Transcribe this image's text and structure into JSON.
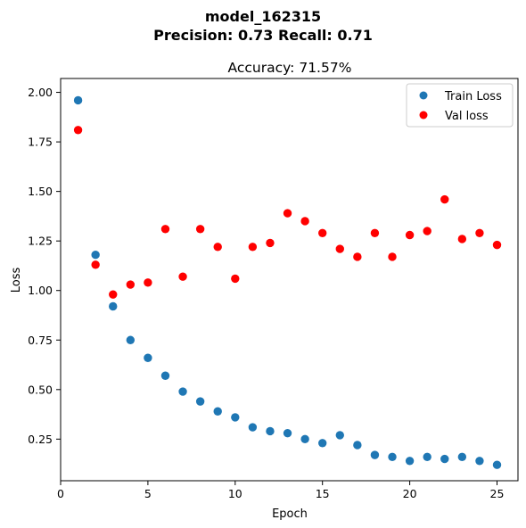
{
  "chart_data": {
    "type": "scatter",
    "suptitle_line1": "model_162315",
    "suptitle_line2": "Precision: 0.73 Recall: 0.71",
    "title": "Accuracy: 71.57%",
    "xlabel": "Epoch",
    "ylabel": "Loss",
    "xlim": [
      0.0,
      26.2
    ],
    "ylim": [
      0.04,
      2.07
    ],
    "xticks": [
      0,
      5,
      10,
      15,
      20,
      25
    ],
    "xtick_labels": [
      "0",
      "5",
      "10",
      "15",
      "20",
      "25"
    ],
    "yticks": [
      0.25,
      0.5,
      0.75,
      1.0,
      1.25,
      1.5,
      1.75,
      2.0
    ],
    "ytick_labels": [
      "0.25",
      "0.50",
      "0.75",
      "1.00",
      "1.25",
      "1.50",
      "1.75",
      "2.00"
    ],
    "legend_position": "top-right",
    "grid": false,
    "x": [
      1,
      2,
      3,
      4,
      5,
      6,
      7,
      8,
      9,
      10,
      11,
      12,
      13,
      14,
      15,
      16,
      17,
      18,
      19,
      20,
      21,
      22,
      23,
      24,
      25
    ],
    "series": [
      {
        "name": "Train Loss",
        "color": "#1f77b4",
        "values": [
          1.96,
          1.18,
          0.92,
          0.75,
          0.66,
          0.57,
          0.49,
          0.44,
          0.39,
          0.36,
          0.31,
          0.29,
          0.28,
          0.25,
          0.23,
          0.27,
          0.22,
          0.17,
          0.16,
          0.14,
          0.16,
          0.15,
          0.16,
          0.14,
          0.12
        ]
      },
      {
        "name": "Val loss",
        "color": "#ff0000",
        "values": [
          1.81,
          1.13,
          0.98,
          1.03,
          1.04,
          1.31,
          1.07,
          1.31,
          1.22,
          1.06,
          1.22,
          1.24,
          1.39,
          1.35,
          1.29,
          1.21,
          1.17,
          1.29,
          1.17,
          1.28,
          1.3,
          1.46,
          1.26,
          1.29,
          1.23
        ]
      }
    ]
  }
}
